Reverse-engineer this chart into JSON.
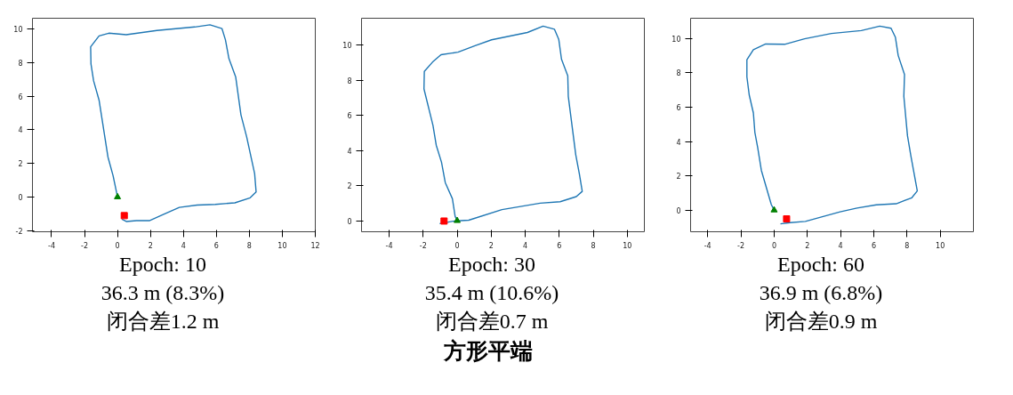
{
  "chart_data": [
    {
      "type": "line",
      "xlim": [
        -5.16,
        12
      ],
      "ylim": [
        -2.07,
        10.64
      ],
      "xticks": [
        -4,
        -2,
        0,
        2,
        4,
        6,
        8,
        10,
        12
      ],
      "yticks": [
        -2,
        0,
        2,
        4,
        6,
        8,
        10
      ],
      "grid": false,
      "series": [
        {
          "type": "line",
          "color": "#1f77b4",
          "x": [
            0,
            -0.27,
            -0.58,
            -1.12,
            -1.45,
            -1.61,
            -1.63,
            -1.12,
            -0.53,
            0.53,
            2.39,
            4.69,
            5.61,
            6.34,
            6.55,
            6.76,
            7.17,
            7.49,
            7.84,
            8.32,
            8.41,
            8.05,
            7.12,
            5.93,
            4.83,
            3.75,
            2.74,
            1.93,
            1.15,
            0.53,
            0.27
          ],
          "values": [
            0,
            1.27,
            2.38,
            5.77,
            6.91,
            7.92,
            8.94,
            9.59,
            9.75,
            9.66,
            9.91,
            10.12,
            10.25,
            10.02,
            9.35,
            8.24,
            7.15,
            4.89,
            3.56,
            1.39,
            0.3,
            -0.05,
            -0.35,
            -0.44,
            -0.48,
            -0.62,
            -1.06,
            -1.41,
            -1.41,
            -1.46,
            -1.32
          ]
        },
        {
          "type": "scatter",
          "marker": "triangle",
          "color": "#008000",
          "x": [
            0
          ],
          "values": [
            0
          ]
        },
        {
          "type": "scatter",
          "marker": "square",
          "color": "#ff0000",
          "x": [
            0.41
          ],
          "values": [
            -1.11
          ]
        }
      ],
      "annotations": [
        "Epoch: 10",
        "36.3 m (8.3%)",
        "闭合差1.2 m"
      ]
    },
    {
      "type": "line",
      "xlim": [
        -5.62,
        11.0
      ],
      "ylim": [
        -0.63,
        11.53
      ],
      "xticks": [
        -4,
        -2,
        0,
        2,
        4,
        6,
        8,
        10
      ],
      "yticks": [
        0,
        2,
        4,
        6,
        8,
        10
      ],
      "grid": false,
      "series": [
        {
          "type": "line",
          "color": "#1f77b4",
          "x": [
            0,
            -0.12,
            -0.28,
            -0.7,
            -0.92,
            -1.23,
            -1.42,
            -1.95,
            -1.93,
            -1.45,
            -0.95,
            0.05,
            1.05,
            2.02,
            4.13,
            5.05,
            5.72,
            5.97,
            6.13,
            6.5,
            6.53,
            6.97,
            7.18,
            7.35,
            7.0,
            6.05,
            4.88,
            2.63,
            0.68,
            0.22,
            -0.23,
            -1.03
          ],
          "values": [
            0,
            0.25,
            1.25,
            2.17,
            3.33,
            4.3,
            5.42,
            7.5,
            8.5,
            9.03,
            9.45,
            9.6,
            9.97,
            10.3,
            10.72,
            11.08,
            10.9,
            10.33,
            9.2,
            8.25,
            7.08,
            3.75,
            2.67,
            1.67,
            1.37,
            1.08,
            1.0,
            0.63,
            0.03,
            0,
            -0.03,
            -0.17
          ]
        },
        {
          "type": "scatter",
          "marker": "triangle",
          "color": "#008000",
          "x": [
            0
          ],
          "values": [
            0
          ]
        },
        {
          "type": "scatter",
          "marker": "square",
          "color": "#ff0000",
          "x": [
            -0.77
          ],
          "values": [
            -0.02
          ]
        }
      ],
      "annotations": [
        "Epoch: 30",
        "35.4 m (10.6%)",
        "闭合差0.7 m"
      ]
    },
    {
      "type": "line",
      "xlim": [
        -5.03,
        12.0
      ],
      "ylim": [
        -1.26,
        11.18
      ],
      "xticks": [
        -4,
        -2,
        0,
        2,
        4,
        6,
        8,
        10
      ],
      "yticks": [
        0,
        2,
        4,
        6,
        8,
        10
      ],
      "grid": false,
      "series": [
        {
          "type": "line",
          "color": "#1f77b4",
          "x": [
            0,
            -0.17,
            -0.77,
            -0.99,
            -1.16,
            -1.25,
            -1.5,
            -1.64,
            -1.64,
            -1.25,
            -0.51,
            0.63,
            1.83,
            3.45,
            5.25,
            6.36,
            7.04,
            7.3,
            7.47,
            7.85,
            7.81,
            8.03,
            8.24,
            8.62,
            8.29,
            7.35,
            6.15,
            4.99,
            3.97,
            1.88,
            0.97,
            0.38
          ],
          "values": [
            0,
            0.32,
            2.32,
            3.65,
            4.53,
            5.66,
            6.71,
            7.77,
            8.76,
            9.35,
            9.68,
            9.66,
            9.98,
            10.29,
            10.46,
            10.72,
            10.6,
            10.08,
            9.01,
            7.9,
            6.63,
            4.33,
            3.13,
            1.12,
            0.72,
            0.37,
            0.31,
            0.12,
            -0.1,
            -0.66,
            -0.73,
            -0.8
          ]
        },
        {
          "type": "scatter",
          "marker": "triangle",
          "color": "#008000",
          "x": [
            0
          ],
          "values": [
            0
          ]
        },
        {
          "type": "scatter",
          "marker": "square",
          "color": "#ff0000",
          "x": [
            0.75
          ],
          "values": [
            -0.51
          ]
        }
      ],
      "annotations": [
        "Epoch: 60",
        "36.9 m (6.8%)",
        "闭合差0.9 m"
      ]
    },
    {
      "type": "other",
      "title": "方形平端"
    }
  ]
}
